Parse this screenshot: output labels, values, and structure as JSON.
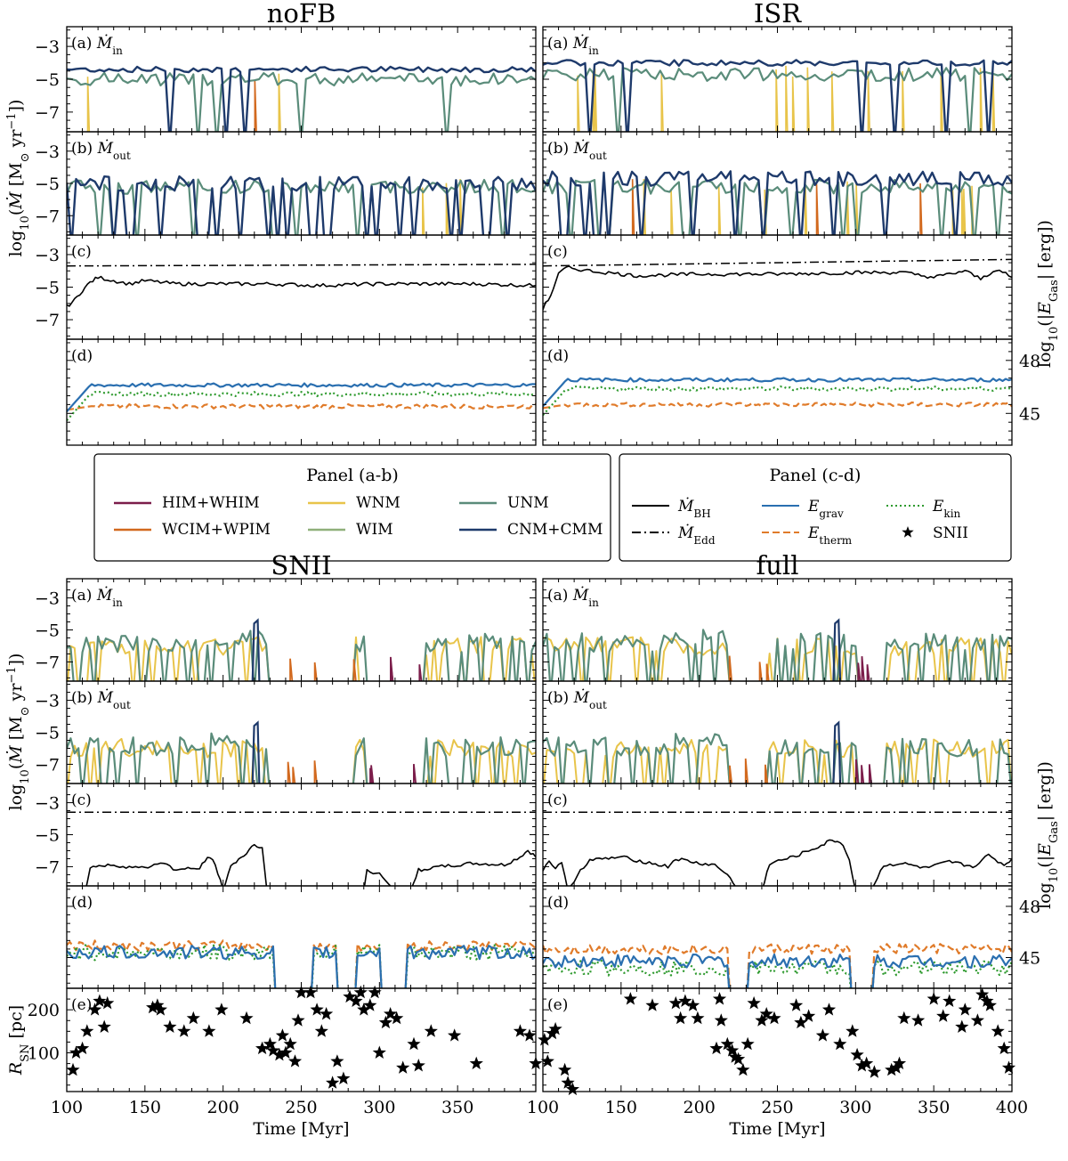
{
  "chart_data": {
    "type": "line",
    "x_axis": {
      "label": "Time [Myr]",
      "range": [
        100,
        400
      ],
      "ticks": [
        100,
        150,
        200,
        250,
        300,
        350,
        400
      ],
      "tick_labels_left": [
        "100",
        "150",
        "200",
        "250",
        "300",
        "350"
      ],
      "tick_labels_right": [
        "100",
        "150",
        "200",
        "250",
        "300",
        "350",
        "400"
      ]
    },
    "y_axes": {
      "mdot_label": "log₁₀(Ṁ [M⊙ yr⁻¹])",
      "mdot_ticks": [
        -7,
        -5,
        -3
      ],
      "mdot_range": [
        -8.2,
        -1.8
      ],
      "energy_label": "log₁₀(|E_Gas| [erg])",
      "energy_ticks": [
        45,
        48
      ],
      "energy_range": [
        43.2,
        49.2
      ],
      "rsn_label": "R_SN [pc]",
      "rsn_ticks": [
        100,
        200
      ],
      "rsn_range": [
        10,
        250
      ]
    },
    "panel_letters": {
      "a": "(a)",
      "b": "(b)",
      "c": "(c)",
      "d": "(d)",
      "e": "(e)"
    },
    "panel_symbols": {
      "a": "Ṁin",
      "b": "Ṁout"
    },
    "legend_ab": {
      "title": "Panel (a-b)",
      "entries": [
        {
          "name": "HIM+WHIM",
          "color": "#7b1d4a"
        },
        {
          "name": "WNM",
          "color": "#e8c44a"
        },
        {
          "name": "UNM",
          "color": "#5a8c7a"
        },
        {
          "name": "WCIM+WPIM",
          "color": "#d2691e"
        },
        {
          "name": "WIM",
          "color": "#8fb07a"
        },
        {
          "name": "CNM+CMM",
          "color": "#1e3a6b"
        }
      ]
    },
    "legend_cd": {
      "title": "Panel (c-d)",
      "entries": [
        {
          "name": "ṀBH",
          "style": "solid",
          "color": "#000000"
        },
        {
          "name": "E_grav",
          "style": "solid",
          "color": "#2a6fb0"
        },
        {
          "name": "E_kin",
          "style": "dotted",
          "color": "#2e9a2e"
        },
        {
          "name": "ṀEdd",
          "style": "dashdot",
          "color": "#000000"
        },
        {
          "name": "E_therm",
          "style": "dashed",
          "color": "#e07b2a"
        },
        {
          "name": "SNII",
          "style": "star",
          "color": "#000000"
        }
      ]
    },
    "runs": [
      {
        "name": "noFB",
        "panels": {
          "a": {
            "CNM+CMM": -4.4,
            "UNM": -5.0,
            "WNM_spikes": [
              148,
              335
            ]
          },
          "b": {
            "CNM+CMM": -5.0,
            "UNM": -5.2
          },
          "c": {
            "mdot_bh": [
              [
                100,
                -6.2
              ],
              [
                105,
                -5.8
              ],
              [
                110,
                -5.2
              ],
              [
                115,
                -4.7
              ],
              [
                120,
                -4.4
              ],
              [
                130,
                -4.6
              ],
              [
                140,
                -4.8
              ],
              [
                150,
                -4.6
              ],
              [
                170,
                -4.8
              ],
              [
                200,
                -4.8
              ],
              [
                230,
                -4.8
              ],
              [
                260,
                -4.9
              ],
              [
                300,
                -4.8
              ],
              [
                330,
                -4.8
              ],
              [
                360,
                -4.8
              ],
              [
                400,
                -4.9
              ]
            ],
            "mdot_edd": [
              [
                100,
                -3.7
              ],
              [
                400,
                -3.6
              ]
            ]
          },
          "d": {
            "E_grav": 46.6,
            "E_kin": 46.1,
            "E_therm": 45.4
          }
        }
      },
      {
        "name": "ISR",
        "panels": {
          "a": {
            "CNM+CMM": -4.0,
            "UNM": -4.7
          },
          "b": {
            "CNM+CMM": -4.7,
            "UNM": -5.2
          },
          "c": {
            "mdot_bh": [
              [
                100,
                -6.3
              ],
              [
                105,
                -5.5
              ],
              [
                110,
                -4.2
              ],
              [
                115,
                -3.8
              ],
              [
                130,
                -4.0
              ],
              [
                160,
                -4.3
              ],
              [
                200,
                -4.2
              ],
              [
                250,
                -4.2
              ],
              [
                300,
                -4.1
              ],
              [
                330,
                -4.1
              ],
              [
                350,
                -4.4
              ],
              [
                370,
                -4.0
              ],
              [
                380,
                -4.5
              ],
              [
                390,
                -3.9
              ],
              [
                400,
                -4.4
              ]
            ],
            "mdot_edd": [
              [
                100,
                -3.7
              ],
              [
                400,
                -3.3
              ]
            ]
          },
          "d": {
            "E_grav": 46.9,
            "E_kin": 46.4,
            "E_therm": 45.5
          }
        }
      },
      {
        "name": "SNII",
        "panels": {
          "a": {
            "UNM": -5.8,
            "WNM": -6.0
          },
          "b": {
            "UNM": -5.9,
            "WNM": -6.0
          },
          "c": {
            "mdot_bh": [
              [
                100,
                -8.5
              ],
              [
                112,
                -8.5
              ],
              [
                115,
                -7.0
              ],
              [
                130,
                -6.9
              ],
              [
                150,
                -7.1
              ],
              [
                160,
                -6.7
              ],
              [
                170,
                -7.2
              ],
              [
                185,
                -7.1
              ],
              [
                190,
                -6.4
              ],
              [
                195,
                -6.8
              ],
              [
                200,
                -8.5
              ],
              [
                205,
                -7.0
              ],
              [
                210,
                -6.5
              ],
              [
                215,
                -6.2
              ],
              [
                220,
                -5.6
              ],
              [
                225,
                -5.8
              ],
              [
                228,
                -8.5
              ],
              [
                290,
                -8.5
              ],
              [
                292,
                -7.2
              ],
              [
                300,
                -7.5
              ],
              [
                310,
                -8.5
              ],
              [
                320,
                -8.5
              ],
              [
                325,
                -7.2
              ],
              [
                340,
                -7.0
              ],
              [
                360,
                -6.8
              ],
              [
                380,
                -6.9
              ],
              [
                390,
                -6.4
              ],
              [
                395,
                -6.0
              ],
              [
                400,
                -6.4
              ]
            ],
            "mdot_edd": [
              [
                100,
                -3.6
              ],
              [
                400,
                -3.6
              ]
            ]
          },
          "d": {
            "E_grav": 45.3,
            "E_kin": 45.3,
            "E_therm": 45.7
          },
          "e": [
            [
              104,
              60
            ],
            [
              106,
              100
            ],
            [
              110,
              110
            ],
            [
              113,
              150
            ],
            [
              118,
              200
            ],
            [
              121,
              220
            ],
            [
              124,
              160
            ],
            [
              126,
              215
            ],
            [
              155,
              205
            ],
            [
              158,
              210
            ],
            [
              160,
              200
            ],
            [
              166,
              160
            ],
            [
              175,
              150
            ],
            [
              181,
              180
            ],
            [
              191,
              150
            ],
            [
              199,
              200
            ],
            [
              215,
              180
            ],
            [
              225,
              110
            ],
            [
              230,
              120
            ],
            [
              232,
              105
            ],
            [
              236,
              95
            ],
            [
              238,
              140
            ],
            [
              240,
              100
            ],
            [
              243,
              120
            ],
            [
              246,
              80
            ],
            [
              248,
              175
            ],
            [
              250,
              240
            ],
            [
              256,
              240
            ],
            [
              260,
              200
            ],
            [
              263,
              150
            ],
            [
              266,
              190
            ],
            [
              270,
              30
            ],
            [
              273,
              80
            ],
            [
              277,
              40
            ],
            [
              281,
              230
            ],
            [
              285,
              220
            ],
            [
              288,
              240
            ],
            [
              290,
              200
            ],
            [
              294,
              210
            ],
            [
              297,
              240
            ],
            [
              300,
              100
            ],
            [
              304,
              170
            ],
            [
              307,
              190
            ],
            [
              311,
              180
            ],
            [
              315,
              65
            ],
            [
              322,
              120
            ],
            [
              325,
              70
            ],
            [
              333,
              150
            ],
            [
              348,
              140
            ],
            [
              362,
              75
            ],
            [
              390,
              150
            ],
            [
              396,
              140
            ],
            [
              400,
              75
            ]
          ]
        }
      },
      {
        "name": "full",
        "panels": {
          "a": {
            "UNM": -5.8,
            "WNM": -6.0,
            "CNM+CMM_peak": -4.4
          },
          "b": {
            "UNM": -5.9,
            "WNM": -6.0
          },
          "c": {
            "mdot_bh": [
              [
                100,
                -7.2
              ],
              [
                104,
                -6.6
              ],
              [
                108,
                -7.1
              ],
              [
                112,
                -6.8
              ],
              [
                116,
                -8.5
              ],
              [
                124,
                -7.2
              ],
              [
                130,
                -6.6
              ],
              [
                150,
                -6.4
              ],
              [
                170,
                -6.8
              ],
              [
                180,
                -7.0
              ],
              [
                185,
                -6.5
              ],
              [
                200,
                -6.8
              ],
              [
                210,
                -6.9
              ],
              [
                218,
                -7.5
              ],
              [
                225,
                -8.5
              ],
              [
                240,
                -8.5
              ],
              [
                245,
                -6.8
              ],
              [
                260,
                -6.4
              ],
              [
                270,
                -6.0
              ],
              [
                280,
                -5.6
              ],
              [
                285,
                -5.3
              ],
              [
                292,
                -5.6
              ],
              [
                296,
                -6.6
              ],
              [
                300,
                -8.5
              ],
              [
                310,
                -8.5
              ],
              [
                318,
                -6.9
              ],
              [
                330,
                -6.8
              ],
              [
                345,
                -7.1
              ],
              [
                360,
                -6.7
              ],
              [
                375,
                -7.0
              ],
              [
                385,
                -6.3
              ],
              [
                395,
                -6.9
              ],
              [
                400,
                -6.5
              ]
            ],
            "mdot_edd": [
              [
                100,
                -3.6
              ],
              [
                400,
                -3.6
              ]
            ]
          },
          "d": {
            "E_grav": 44.8,
            "E_kin": 44.4,
            "E_therm": 45.5
          },
          "e": [
            [
              101,
              130
            ],
            [
              103,
              80
            ],
            [
              106,
              145
            ],
            [
              108,
              155
            ],
            [
              114,
              60
            ],
            [
              116,
              30
            ],
            [
              119,
              15
            ],
            [
              156,
              225
            ],
            [
              170,
              210
            ],
            [
              185,
              215
            ],
            [
              188,
              180
            ],
            [
              191,
              220
            ],
            [
              196,
              210
            ],
            [
              199,
              180
            ],
            [
              211,
              110
            ],
            [
              213,
              225
            ],
            [
              214,
              175
            ],
            [
              218,
              120
            ],
            [
              221,
              105
            ],
            [
              223,
              90
            ],
            [
              225,
              85
            ],
            [
              228,
              60
            ],
            [
              231,
              120
            ],
            [
              235,
              215
            ],
            [
              240,
              175
            ],
            [
              243,
              190
            ],
            [
              248,
              180
            ],
            [
              262,
              210
            ],
            [
              265,
              170
            ],
            [
              270,
              185
            ],
            [
              279,
              140
            ],
            [
              283,
              200
            ],
            [
              290,
              120
            ],
            [
              298,
              150
            ],
            [
              301,
              95
            ],
            [
              304,
              70
            ],
            [
              307,
              75
            ],
            [
              312,
              55
            ],
            [
              323,
              60
            ],
            [
              326,
              65
            ],
            [
              328,
              75
            ],
            [
              331,
              180
            ],
            [
              340,
              175
            ],
            [
              350,
              225
            ],
            [
              356,
              185
            ],
            [
              360,
              220
            ],
            [
              368,
              160
            ],
            [
              370,
              200
            ],
            [
              378,
              175
            ],
            [
              381,
              235
            ],
            [
              384,
              220
            ],
            [
              386,
              210
            ],
            [
              391,
              150
            ],
            [
              395,
              110
            ],
            [
              398,
              65
            ]
          ]
        }
      }
    ]
  }
}
